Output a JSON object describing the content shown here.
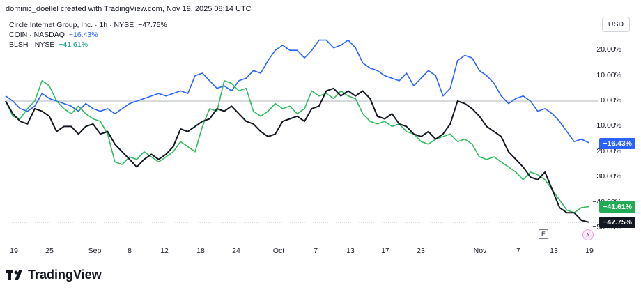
{
  "header": {
    "credit": "dominic_doellel created with TradingView.com, Nov 19, 2025 08:14 UTC"
  },
  "legend": [
    {
      "symbol": "Circle Internet Group, Inc. · 1h · NYSE",
      "change": "−47.75%",
      "color": "#131722"
    },
    {
      "symbol": "COIN · NASDAQ",
      "change": "−16.43%",
      "color": "#2962ff"
    },
    {
      "symbol": "BLSH · NYSE",
      "change": "−41.61%",
      "color": "#089981"
    }
  ],
  "currency_label": "USD",
  "brand": {
    "name": "TradingView"
  },
  "markers": {
    "earnings": "E"
  },
  "chart_data": {
    "type": "line",
    "x_ticks": [
      "19",
      "25",
      "Sep",
      "8",
      "12",
      "18",
      "24",
      "Oct",
      "7",
      "13",
      "17",
      "23",
      "Nov",
      "7",
      "13",
      "19"
    ],
    "y_ticks": [
      "20.00%",
      "10.00%",
      "0.00%",
      "−10.00%",
      "−20.00%",
      "−30.00%",
      "−40.00%",
      "−50.00%"
    ],
    "y_tick_values": [
      20,
      10,
      0,
      -10,
      -20,
      -30,
      -40,
      -50
    ],
    "ylim": [
      -52,
      28
    ],
    "zero_line": true,
    "series": [
      {
        "name": "Circle Internet Group, Inc.",
        "color": "#131722",
        "last_label": "−47.75%",
        "points": [
          [
            0,
            0
          ],
          [
            2,
            -5
          ],
          [
            4,
            -8
          ],
          [
            6,
            -9
          ],
          [
            8,
            -3
          ],
          [
            10,
            -4
          ],
          [
            12,
            -6
          ],
          [
            14,
            -12
          ],
          [
            16,
            -10
          ],
          [
            18,
            -10
          ],
          [
            20,
            -13
          ],
          [
            22,
            -10
          ],
          [
            24,
            -9
          ],
          [
            26,
            -13
          ],
          [
            28,
            -12
          ],
          [
            30,
            -17
          ],
          [
            32,
            -20
          ],
          [
            34,
            -23
          ],
          [
            36,
            -26
          ],
          [
            38,
            -23
          ],
          [
            40,
            -21
          ],
          [
            42,
            -23
          ],
          [
            44,
            -21
          ],
          [
            46,
            -18
          ],
          [
            48,
            -11
          ],
          [
            50,
            -12
          ],
          [
            52,
            -10
          ],
          [
            54,
            -8
          ],
          [
            56,
            -7
          ],
          [
            58,
            -3
          ],
          [
            60,
            -4
          ],
          [
            62,
            -2
          ],
          [
            64,
            -5
          ],
          [
            66,
            -8
          ],
          [
            68,
            -9
          ],
          [
            70,
            -12
          ],
          [
            72,
            -14
          ],
          [
            74,
            -13
          ],
          [
            76,
            -8
          ],
          [
            78,
            -7
          ],
          [
            80,
            -6
          ],
          [
            82,
            -8
          ],
          [
            84,
            -3
          ],
          [
            86,
            -2
          ],
          [
            88,
            4
          ],
          [
            90,
            5
          ],
          [
            92,
            2
          ],
          [
            94,
            4
          ],
          [
            96,
            2
          ],
          [
            98,
            4
          ],
          [
            100,
            1
          ],
          [
            102,
            -6
          ],
          [
            104,
            -7
          ],
          [
            106,
            -5
          ],
          [
            108,
            -9
          ],
          [
            110,
            -10
          ],
          [
            112,
            -13
          ],
          [
            114,
            -14
          ],
          [
            116,
            -12
          ],
          [
            118,
            -15
          ],
          [
            120,
            -13
          ],
          [
            122,
            -9
          ],
          [
            124,
            0
          ],
          [
            126,
            -1
          ],
          [
            128,
            -3
          ],
          [
            130,
            -6
          ],
          [
            132,
            -10
          ],
          [
            134,
            -12
          ],
          [
            136,
            -14
          ],
          [
            138,
            -20
          ],
          [
            140,
            -23
          ],
          [
            142,
            -26
          ],
          [
            144,
            -30
          ],
          [
            146,
            -31
          ],
          [
            148,
            -28
          ],
          [
            150,
            -35
          ],
          [
            152,
            -42
          ],
          [
            154,
            -44
          ],
          [
            156,
            -44
          ],
          [
            158,
            -47
          ],
          [
            160,
            -47.75
          ]
        ]
      },
      {
        "name": "COIN",
        "color": "#2962ff",
        "last_label": "−16.43%",
        "points": [
          [
            0,
            2
          ],
          [
            2,
            0
          ],
          [
            4,
            -3
          ],
          [
            6,
            -4
          ],
          [
            8,
            -2
          ],
          [
            10,
            3
          ],
          [
            12,
            1
          ],
          [
            14,
            0
          ],
          [
            16,
            -1
          ],
          [
            18,
            -2
          ],
          [
            20,
            -4
          ],
          [
            22,
            -1
          ],
          [
            24,
            -3
          ],
          [
            26,
            -4
          ],
          [
            28,
            -3
          ],
          [
            30,
            -5
          ],
          [
            32,
            -3
          ],
          [
            34,
            -1
          ],
          [
            36,
            0
          ],
          [
            38,
            1
          ],
          [
            40,
            2
          ],
          [
            42,
            3
          ],
          [
            44,
            2
          ],
          [
            46,
            3
          ],
          [
            48,
            4
          ],
          [
            50,
            3
          ],
          [
            52,
            10
          ],
          [
            54,
            11
          ],
          [
            56,
            8
          ],
          [
            58,
            5
          ],
          [
            60,
            6
          ],
          [
            62,
            4
          ],
          [
            64,
            8
          ],
          [
            66,
            9
          ],
          [
            68,
            12
          ],
          [
            70,
            11
          ],
          [
            72,
            16
          ],
          [
            74,
            20
          ],
          [
            76,
            22
          ],
          [
            78,
            20
          ],
          [
            80,
            20
          ],
          [
            82,
            17
          ],
          [
            84,
            20
          ],
          [
            86,
            24
          ],
          [
            88,
            24
          ],
          [
            90,
            21
          ],
          [
            92,
            22
          ],
          [
            94,
            24
          ],
          [
            96,
            21
          ],
          [
            98,
            15
          ],
          [
            100,
            13
          ],
          [
            102,
            12
          ],
          [
            104,
            10
          ],
          [
            106,
            9
          ],
          [
            108,
            8
          ],
          [
            110,
            11
          ],
          [
            112,
            6
          ],
          [
            114,
            9
          ],
          [
            116,
            12
          ],
          [
            118,
            10
          ],
          [
            120,
            2
          ],
          [
            122,
            5
          ],
          [
            124,
            16
          ],
          [
            126,
            18
          ],
          [
            128,
            17
          ],
          [
            130,
            12
          ],
          [
            132,
            10
          ],
          [
            134,
            7
          ],
          [
            136,
            2
          ],
          [
            138,
            -1
          ],
          [
            140,
            1
          ],
          [
            142,
            2
          ],
          [
            144,
            0
          ],
          [
            146,
            -4
          ],
          [
            148,
            -3
          ],
          [
            150,
            -5
          ],
          [
            152,
            -8
          ],
          [
            154,
            -12
          ],
          [
            156,
            -16
          ],
          [
            158,
            -15
          ],
          [
            160,
            -16.43
          ]
        ]
      },
      {
        "name": "BLSH",
        "color": "#2ebd5e",
        "last_label": "−41.61%",
        "points": [
          [
            0,
            0
          ],
          [
            2,
            -6
          ],
          [
            4,
            -7
          ],
          [
            6,
            -3
          ],
          [
            8,
            0
          ],
          [
            10,
            8
          ],
          [
            12,
            6
          ],
          [
            14,
            0
          ],
          [
            16,
            -3
          ],
          [
            18,
            -5
          ],
          [
            20,
            -2
          ],
          [
            22,
            -5
          ],
          [
            24,
            -7
          ],
          [
            26,
            -8
          ],
          [
            28,
            -13
          ],
          [
            30,
            -24
          ],
          [
            32,
            -25
          ],
          [
            34,
            -22
          ],
          [
            36,
            -23
          ],
          [
            38,
            -20
          ],
          [
            40,
            -22
          ],
          [
            42,
            -24
          ],
          [
            44,
            -22
          ],
          [
            46,
            -20
          ],
          [
            48,
            -16
          ],
          [
            50,
            -18
          ],
          [
            52,
            -20
          ],
          [
            54,
            -10
          ],
          [
            56,
            -3
          ],
          [
            58,
            -4
          ],
          [
            60,
            8
          ],
          [
            62,
            7
          ],
          [
            64,
            4
          ],
          [
            66,
            5
          ],
          [
            68,
            -4
          ],
          [
            70,
            -6
          ],
          [
            72,
            -4
          ],
          [
            74,
            -1
          ],
          [
            76,
            -3
          ],
          [
            78,
            -2
          ],
          [
            80,
            -5
          ],
          [
            82,
            -3
          ],
          [
            84,
            4
          ],
          [
            86,
            2
          ],
          [
            88,
            3
          ],
          [
            90,
            1
          ],
          [
            92,
            4
          ],
          [
            94,
            2
          ],
          [
            96,
            1
          ],
          [
            98,
            -5
          ],
          [
            100,
            -8
          ],
          [
            102,
            -9
          ],
          [
            104,
            -8
          ],
          [
            106,
            -10
          ],
          [
            108,
            -9
          ],
          [
            110,
            -12
          ],
          [
            112,
            -13
          ],
          [
            114,
            -16
          ],
          [
            116,
            -17
          ],
          [
            118,
            -15
          ],
          [
            120,
            -14
          ],
          [
            122,
            -13
          ],
          [
            124,
            -16
          ],
          [
            126,
            -15
          ],
          [
            128,
            -17
          ],
          [
            130,
            -22
          ],
          [
            132,
            -23
          ],
          [
            134,
            -22
          ],
          [
            136,
            -24
          ],
          [
            138,
            -26
          ],
          [
            140,
            -28
          ],
          [
            142,
            -31
          ],
          [
            144,
            -28
          ],
          [
            146,
            -29
          ],
          [
            148,
            -31
          ],
          [
            150,
            -35
          ],
          [
            152,
            -39
          ],
          [
            154,
            -43
          ],
          [
            156,
            -44
          ],
          [
            158,
            -42
          ],
          [
            160,
            -41.61
          ]
        ]
      }
    ]
  }
}
